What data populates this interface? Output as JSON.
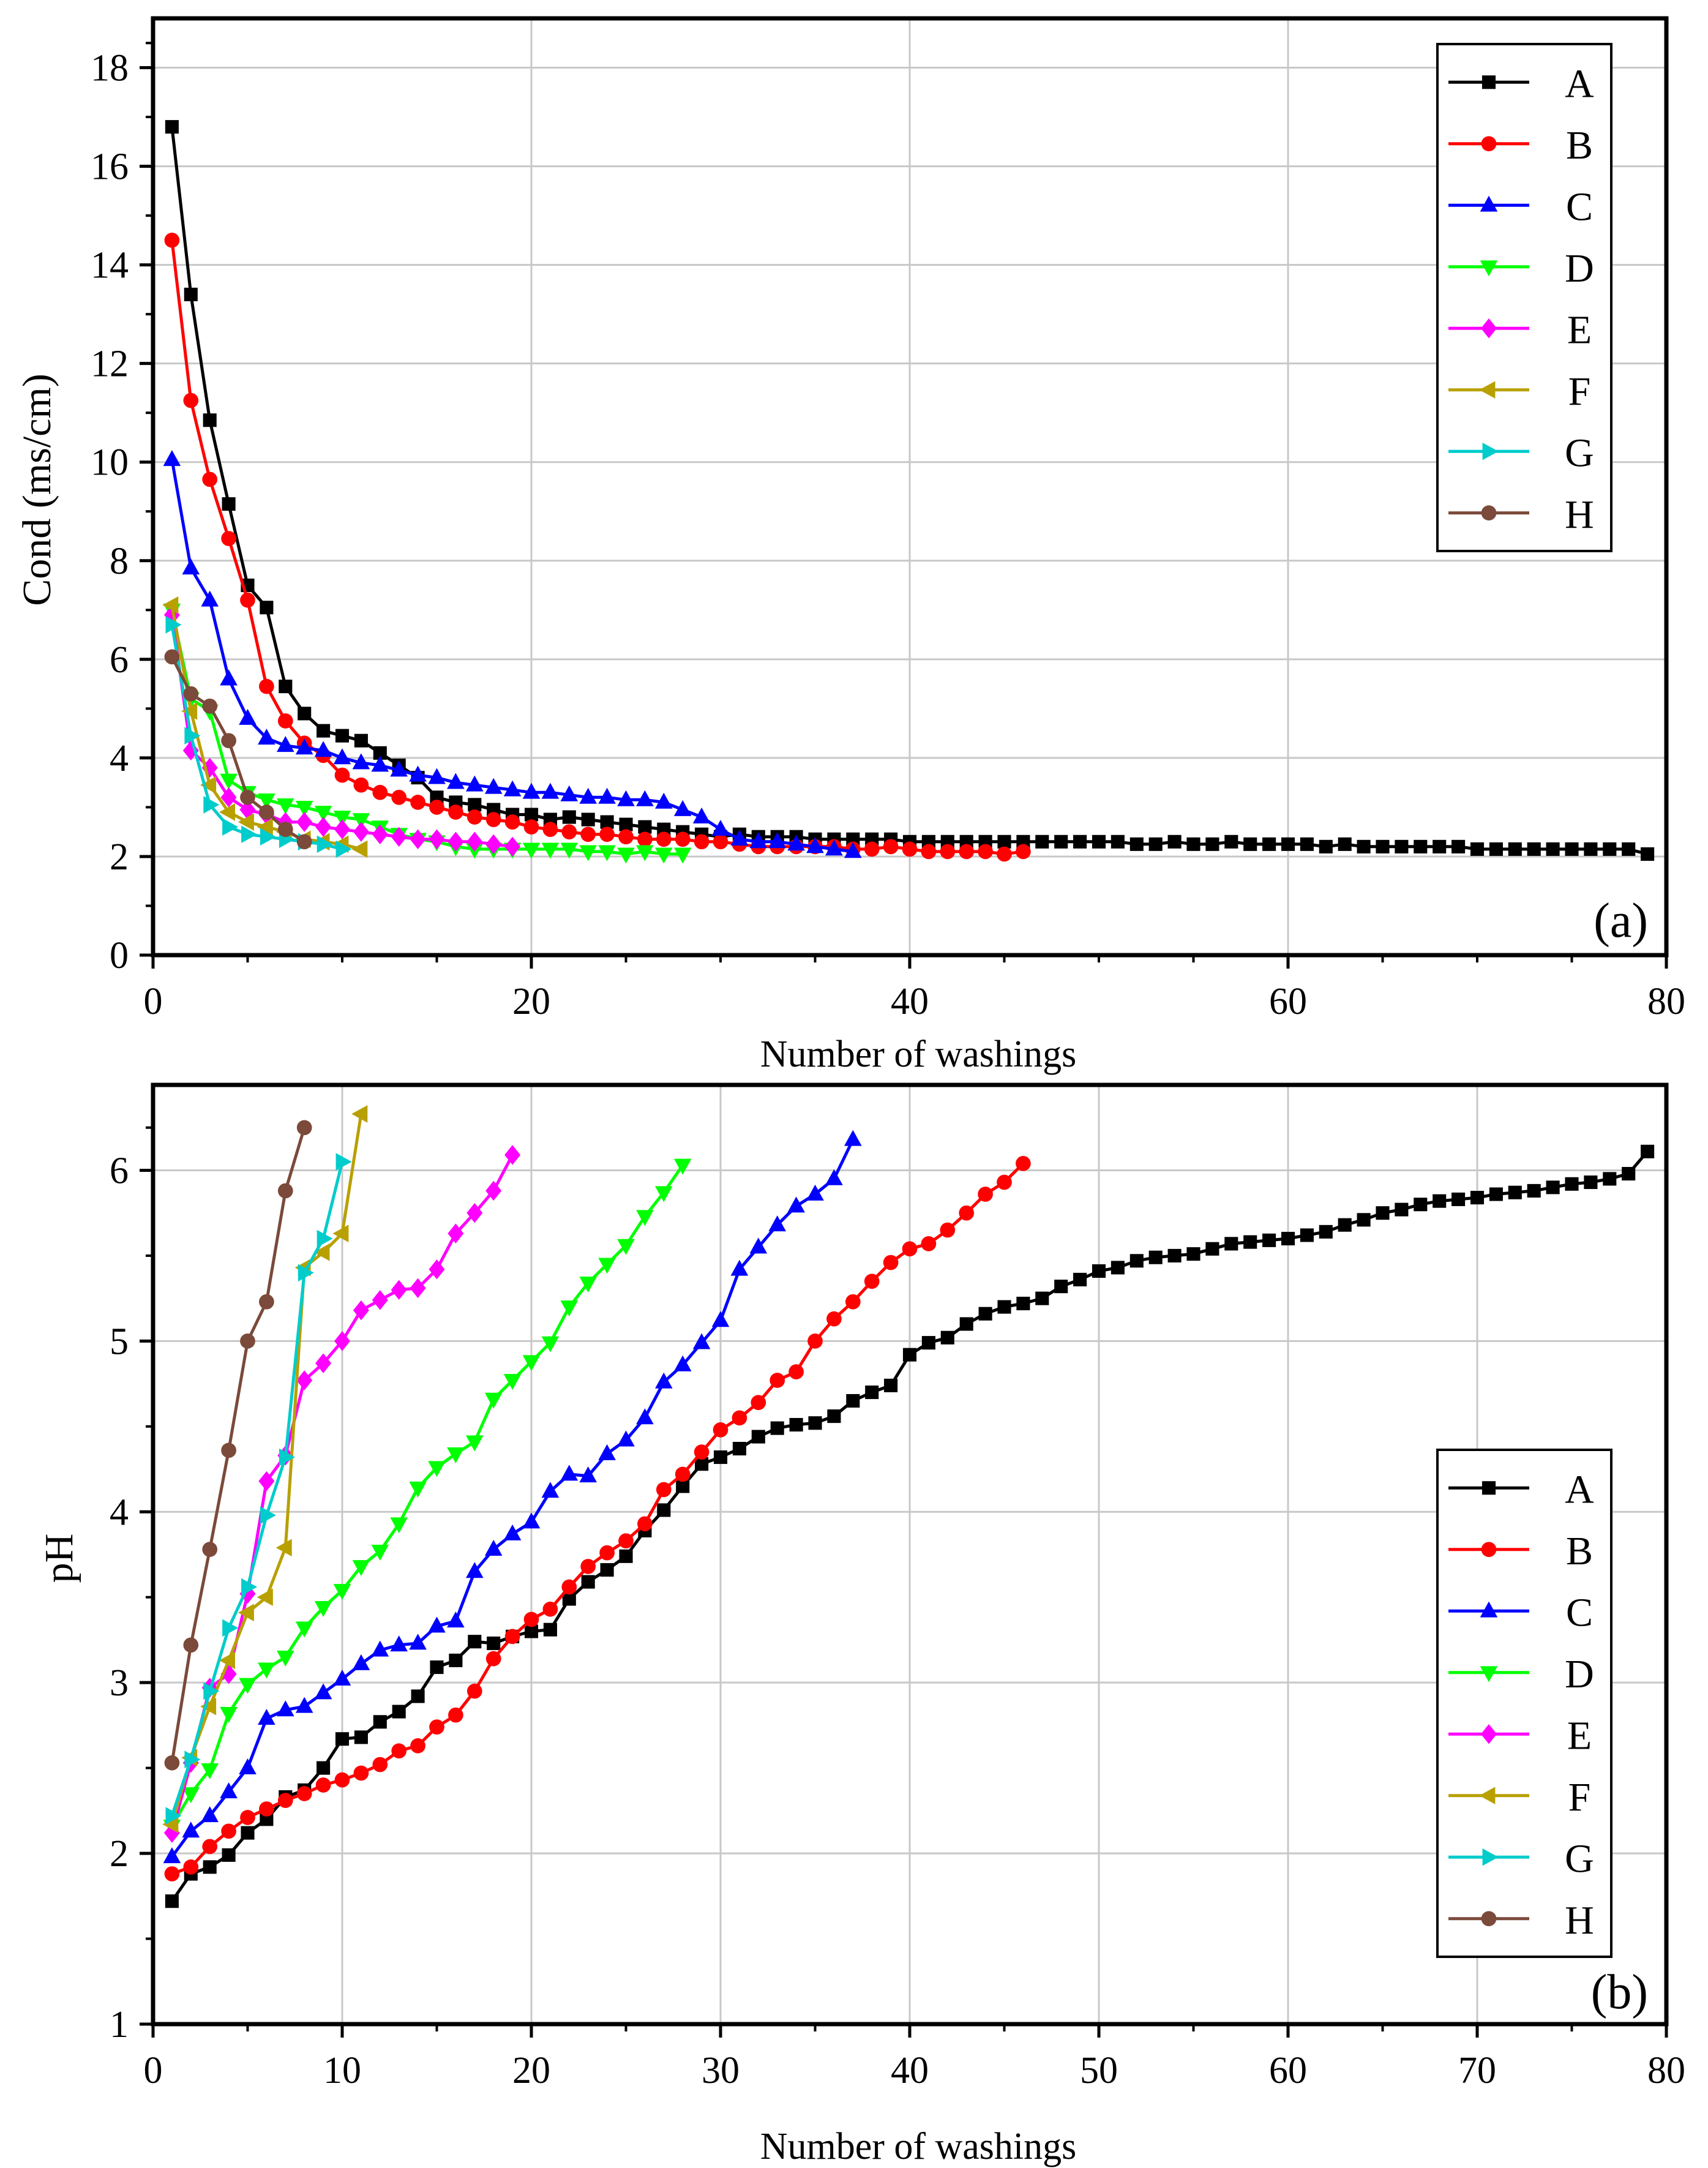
{
  "figure": {
    "series_names": [
      "A",
      "B",
      "C",
      "D",
      "E",
      "F",
      "G",
      "H"
    ],
    "series_colors": [
      "#000000",
      "#ff0000",
      "#0000ff",
      "#00ff00",
      "#ff00ff",
      "#b8a000",
      "#00cccc",
      "#7b4a3a"
    ],
    "series_markers": [
      "square",
      "circle",
      "triangle-up",
      "triangle-down",
      "diamond",
      "triangle-left",
      "triangle-right",
      "circle"
    ]
  },
  "chart_data": [
    {
      "type": "line",
      "panel_label": "(a)",
      "title": "",
      "xlabel": "Number of washings",
      "ylabel": "Cond (ms/cm)",
      "xlim": [
        0,
        80
      ],
      "ylim": [
        0,
        19
      ],
      "xticks": [
        0,
        20,
        40,
        60,
        80
      ],
      "yticks": [
        0,
        2,
        4,
        6,
        8,
        10,
        12,
        14,
        16,
        18
      ],
      "grid": true,
      "legend": "top-right",
      "series": [
        {
          "name": "A",
          "x": [
            1,
            2,
            3,
            4,
            5,
            6,
            7,
            8,
            9,
            10,
            11,
            12,
            13,
            14,
            15,
            16,
            17,
            18,
            19,
            20,
            21,
            22,
            23,
            24,
            25,
            26,
            27,
            28,
            29,
            30,
            31,
            32,
            33,
            34,
            35,
            36,
            37,
            38,
            39,
            40,
            41,
            42,
            43,
            44,
            45,
            46,
            47,
            48,
            49,
            50,
            51,
            52,
            53,
            54,
            55,
            56,
            57,
            58,
            59,
            60,
            61,
            62,
            63,
            64,
            65,
            66,
            67,
            68,
            69,
            70,
            71,
            72,
            73,
            74,
            75,
            76,
            77,
            78,
            79
          ],
          "y": [
            16.8,
            13.4,
            10.85,
            9.15,
            7.5,
            7.05,
            5.45,
            4.9,
            4.55,
            4.45,
            4.35,
            4.1,
            3.85,
            3.6,
            3.2,
            3.1,
            3.05,
            2.95,
            2.85,
            2.85,
            2.75,
            2.8,
            2.75,
            2.7,
            2.65,
            2.6,
            2.55,
            2.5,
            2.45,
            2.4,
            2.45,
            2.4,
            2.4,
            2.4,
            2.35,
            2.35,
            2.35,
            2.35,
            2.35,
            2.3,
            2.3,
            2.3,
            2.3,
            2.3,
            2.3,
            2.3,
            2.3,
            2.3,
            2.3,
            2.3,
            2.3,
            2.25,
            2.25,
            2.3,
            2.25,
            2.25,
            2.3,
            2.25,
            2.25,
            2.25,
            2.25,
            2.2,
            2.25,
            2.2,
            2.2,
            2.2,
            2.2,
            2.2,
            2.2,
            2.15,
            2.15,
            2.15,
            2.15,
            2.15,
            2.15,
            2.15,
            2.15,
            2.15,
            2.05
          ]
        },
        {
          "name": "B",
          "x": [
            1,
            2,
            3,
            4,
            5,
            6,
            7,
            8,
            9,
            10,
            11,
            12,
            13,
            14,
            15,
            16,
            17,
            18,
            19,
            20,
            21,
            22,
            23,
            24,
            25,
            26,
            27,
            28,
            29,
            30,
            31,
            32,
            33,
            34,
            35,
            36,
            37,
            38,
            39,
            40,
            41,
            42,
            43,
            44,
            45,
            46
          ],
          "y": [
            14.5,
            11.25,
            9.65,
            8.45,
            7.2,
            5.45,
            4.75,
            4.3,
            4.05,
            3.65,
            3.45,
            3.3,
            3.2,
            3.1,
            3.0,
            2.9,
            2.8,
            2.75,
            2.7,
            2.6,
            2.55,
            2.5,
            2.45,
            2.45,
            2.4,
            2.35,
            2.35,
            2.35,
            2.3,
            2.3,
            2.25,
            2.2,
            2.2,
            2.2,
            2.2,
            2.2,
            2.15,
            2.15,
            2.2,
            2.15,
            2.1,
            2.1,
            2.1,
            2.1,
            2.05,
            2.1
          ]
        },
        {
          "name": "C",
          "x": [
            1,
            2,
            3,
            4,
            5,
            6,
            7,
            8,
            9,
            10,
            11,
            12,
            13,
            14,
            15,
            16,
            17,
            18,
            19,
            20,
            21,
            22,
            23,
            24,
            25,
            26,
            27,
            28,
            29,
            30,
            31,
            32,
            33,
            34,
            35,
            36,
            37
          ],
          "y": [
            10.05,
            7.85,
            7.2,
            5.6,
            4.8,
            4.4,
            4.25,
            4.2,
            4.15,
            4.0,
            3.9,
            3.85,
            3.75,
            3.65,
            3.6,
            3.5,
            3.45,
            3.4,
            3.35,
            3.3,
            3.3,
            3.25,
            3.2,
            3.2,
            3.15,
            3.15,
            3.1,
            2.95,
            2.8,
            2.55,
            2.35,
            2.3,
            2.3,
            2.25,
            2.2,
            2.15,
            2.1
          ]
        },
        {
          "name": "D",
          "x": [
            1,
            2,
            3,
            4,
            5,
            6,
            7,
            8,
            9,
            10,
            11,
            12,
            13,
            14,
            15,
            16,
            17,
            18,
            19,
            20,
            21,
            22,
            23,
            24,
            25,
            26,
            27,
            28
          ],
          "y": [
            7.0,
            5.2,
            4.95,
            3.55,
            3.3,
            3.15,
            3.05,
            3.0,
            2.9,
            2.8,
            2.75,
            2.6,
            2.45,
            2.35,
            2.3,
            2.2,
            2.15,
            2.15,
            2.15,
            2.15,
            2.15,
            2.15,
            2.1,
            2.1,
            2.05,
            2.1,
            2.05,
            2.05
          ]
        },
        {
          "name": "E",
          "x": [
            1,
            2,
            3,
            4,
            5,
            6,
            7,
            8,
            9,
            10,
            11,
            12,
            13,
            14,
            15,
            16,
            17,
            18,
            19
          ],
          "y": [
            6.9,
            4.15,
            3.8,
            3.2,
            2.95,
            2.85,
            2.7,
            2.7,
            2.6,
            2.55,
            2.5,
            2.45,
            2.4,
            2.35,
            2.35,
            2.3,
            2.3,
            2.25,
            2.2
          ]
        },
        {
          "name": "F",
          "x": [
            1,
            2,
            3,
            4,
            5,
            6,
            7,
            8,
            9,
            10,
            11
          ],
          "y": [
            7.1,
            4.95,
            3.45,
            2.9,
            2.7,
            2.6,
            2.5,
            2.35,
            2.3,
            2.25,
            2.15
          ]
        },
        {
          "name": "G",
          "x": [
            1,
            2,
            3,
            4,
            5,
            6,
            7,
            8,
            9,
            10
          ],
          "y": [
            6.7,
            4.45,
            3.05,
            2.6,
            2.45,
            2.4,
            2.35,
            2.3,
            2.25,
            2.15
          ]
        },
        {
          "name": "H",
          "x": [
            1,
            2,
            3,
            4,
            5,
            6,
            7,
            8
          ],
          "y": [
            6.05,
            5.3,
            5.05,
            4.35,
            3.2,
            2.9,
            2.55,
            2.3
          ]
        }
      ]
    },
    {
      "type": "line",
      "panel_label": "(b)",
      "title": "",
      "xlabel": "Number of washings",
      "ylabel": "pH",
      "xlim": [
        0,
        80
      ],
      "ylim": [
        1,
        6.5
      ],
      "xticks": [
        0,
        10,
        20,
        30,
        40,
        50,
        60,
        70,
        80
      ],
      "yticks": [
        1,
        2,
        3,
        4,
        5,
        6
      ],
      "grid": true,
      "legend": "bottom-right",
      "series": [
        {
          "name": "A",
          "x": [
            1,
            2,
            3,
            4,
            5,
            6,
            7,
            8,
            9,
            10,
            11,
            12,
            13,
            14,
            15,
            16,
            17,
            18,
            19,
            20,
            21,
            22,
            23,
            24,
            25,
            26,
            27,
            28,
            29,
            30,
            31,
            32,
            33,
            34,
            35,
            36,
            37,
            38,
            39,
            40,
            41,
            42,
            43,
            44,
            45,
            46,
            47,
            48,
            49,
            50,
            51,
            52,
            53,
            54,
            55,
            56,
            57,
            58,
            59,
            60,
            61,
            62,
            63,
            64,
            65,
            66,
            67,
            68,
            69,
            70,
            71,
            72,
            73,
            74,
            75,
            76,
            77,
            78,
            79
          ],
          "y": [
            1.72,
            1.88,
            1.92,
            1.99,
            2.12,
            2.2,
            2.33,
            2.37,
            2.5,
            2.67,
            2.68,
            2.77,
            2.83,
            2.92,
            3.09,
            3.13,
            3.24,
            3.23,
            3.27,
            3.3,
            3.31,
            3.49,
            3.59,
            3.66,
            3.74,
            3.89,
            4.01,
            4.15,
            4.28,
            4.32,
            4.37,
            4.44,
            4.49,
            4.51,
            4.52,
            4.56,
            4.65,
            4.7,
            4.74,
            4.92,
            4.99,
            5.02,
            5.1,
            5.16,
            5.2,
            5.22,
            5.25,
            5.32,
            5.36,
            5.41,
            5.43,
            5.47,
            5.49,
            5.5,
            5.51,
            5.54,
            5.57,
            5.58,
            5.59,
            5.6,
            5.62,
            5.64,
            5.68,
            5.71,
            5.75,
            5.77,
            5.8,
            5.82,
            5.83,
            5.84,
            5.86,
            5.87,
            5.88,
            5.9,
            5.92,
            5.93,
            5.95,
            5.98,
            6.11
          ]
        },
        {
          "name": "B",
          "x": [
            1,
            2,
            3,
            4,
            5,
            6,
            7,
            8,
            9,
            10,
            11,
            12,
            13,
            14,
            15,
            16,
            17,
            18,
            19,
            20,
            21,
            22,
            23,
            24,
            25,
            26,
            27,
            28,
            29,
            30,
            31,
            32,
            33,
            34,
            35,
            36,
            37,
            38,
            39,
            40,
            41,
            42,
            43,
            44,
            45,
            46
          ],
          "y": [
            1.88,
            1.92,
            2.04,
            2.13,
            2.21,
            2.26,
            2.31,
            2.35,
            2.4,
            2.43,
            2.47,
            2.52,
            2.6,
            2.63,
            2.74,
            2.81,
            2.95,
            3.14,
            3.27,
            3.37,
            3.43,
            3.56,
            3.68,
            3.76,
            3.83,
            3.93,
            4.13,
            4.22,
            4.35,
            4.48,
            4.55,
            4.64,
            4.77,
            4.82,
            5.0,
            5.13,
            5.23,
            5.35,
            5.46,
            5.54,
            5.57,
            5.65,
            5.75,
            5.86,
            5.93,
            6.04
          ]
        },
        {
          "name": "C",
          "x": [
            1,
            2,
            3,
            4,
            5,
            6,
            7,
            8,
            9,
            10,
            11,
            12,
            13,
            14,
            15,
            16,
            17,
            18,
            19,
            20,
            21,
            22,
            23,
            24,
            25,
            26,
            27,
            28,
            29,
            30,
            31,
            32,
            33,
            34,
            35,
            36,
            37
          ],
          "y": [
            1.98,
            2.13,
            2.22,
            2.36,
            2.5,
            2.79,
            2.84,
            2.86,
            2.94,
            3.02,
            3.11,
            3.19,
            3.22,
            3.23,
            3.33,
            3.36,
            3.65,
            3.78,
            3.87,
            3.94,
            4.12,
            4.22,
            4.21,
            4.34,
            4.42,
            4.55,
            4.76,
            4.86,
            4.99,
            5.12,
            5.42,
            5.55,
            5.68,
            5.79,
            5.86,
            5.95,
            6.18
          ]
        },
        {
          "name": "D",
          "x": [
            1,
            2,
            3,
            4,
            5,
            6,
            7,
            8,
            9,
            10,
            11,
            12,
            13,
            14,
            15,
            16,
            17,
            18,
            19,
            20,
            21,
            22,
            23,
            24,
            25,
            26,
            27,
            28
          ],
          "y": [
            2.16,
            2.35,
            2.49,
            2.82,
            2.99,
            3.08,
            3.15,
            3.32,
            3.44,
            3.54,
            3.68,
            3.77,
            3.93,
            4.14,
            4.26,
            4.34,
            4.41,
            4.66,
            4.77,
            4.88,
            4.99,
            5.2,
            5.34,
            5.45,
            5.56,
            5.73,
            5.87,
            6.03
          ]
        },
        {
          "name": "E",
          "x": [
            1,
            2,
            3,
            4,
            5,
            6,
            7,
            8,
            9,
            10,
            11,
            12,
            13,
            14,
            15,
            16,
            17,
            18,
            19
          ],
          "y": [
            2.12,
            2.53,
            2.97,
            3.05,
            3.52,
            4.18,
            4.33,
            4.77,
            4.87,
            5.0,
            5.18,
            5.24,
            5.3,
            5.31,
            5.42,
            5.63,
            5.75,
            5.88,
            6.09
          ]
        },
        {
          "name": "F",
          "x": [
            1,
            2,
            3,
            4,
            5,
            6,
            7,
            8,
            9,
            10,
            11
          ],
          "y": [
            2.17,
            2.56,
            2.86,
            3.13,
            3.41,
            3.5,
            3.79,
            5.43,
            5.52,
            5.63,
            6.33
          ]
        },
        {
          "name": "G",
          "x": [
            1,
            2,
            3,
            4,
            5,
            6,
            7,
            8,
            9,
            10
          ],
          "y": [
            2.22,
            2.55,
            2.95,
            3.32,
            3.56,
            3.98,
            4.32,
            5.4,
            5.6,
            6.05
          ]
        },
        {
          "name": "H",
          "x": [
            1,
            2,
            3,
            4,
            5,
            6,
            7,
            8
          ],
          "y": [
            2.53,
            3.22,
            3.78,
            4.36,
            5.0,
            5.23,
            5.88,
            6.25
          ]
        }
      ]
    }
  ]
}
